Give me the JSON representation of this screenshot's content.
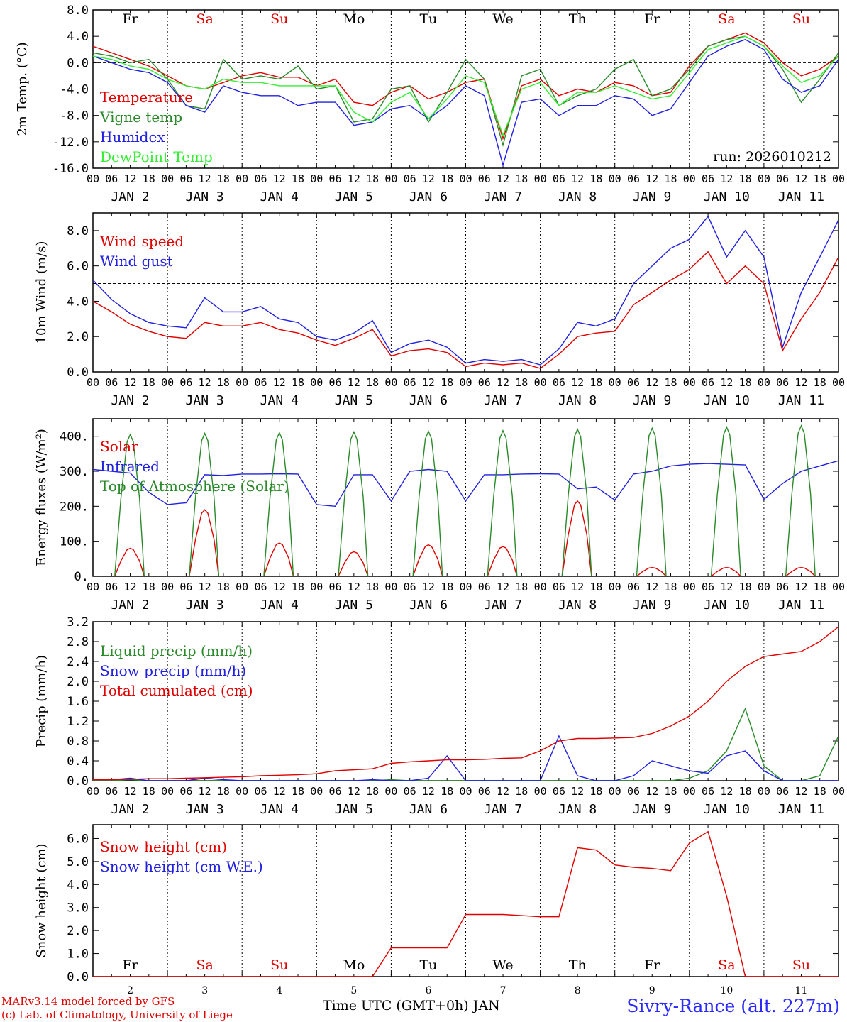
{
  "meter": {
    "days": [
      "JAN  2",
      "JAN  3",
      "JAN  4",
      "JAN  5",
      "JAN  6",
      "JAN  7",
      "JAN  8",
      "JAN  9",
      "JAN 10",
      "JAN 11"
    ],
    "hours": [
      "00",
      "06",
      "12",
      "18"
    ],
    "final_hour": "00",
    "weekdays": [
      {
        "label": "Fr",
        "color": "#000000"
      },
      {
        "label": "Sa",
        "color": "#e00000"
      },
      {
        "label": "Su",
        "color": "#e00000"
      },
      {
        "label": "Mo",
        "color": "#000000"
      },
      {
        "label": "Tu",
        "color": "#000000"
      },
      {
        "label": "We",
        "color": "#000000"
      },
      {
        "label": "Th",
        "color": "#000000"
      },
      {
        "label": "Fr",
        "color": "#000000"
      },
      {
        "label": "Sa",
        "color": "#e00000"
      },
      {
        "label": "Su",
        "color": "#e00000"
      }
    ],
    "bottom_day_numbers": [
      "2",
      "3",
      "4",
      "5",
      "6",
      "7",
      "8",
      "9",
      "10",
      "11"
    ]
  },
  "footer": {
    "model": "MARv3.14 model forced by GFS",
    "lab": "(c) Lab. of Climatology, University of Liege",
    "xlabel": "Time UTC (GMT+0h) JAN",
    "station": "Sivry-Rance (alt. 227m)"
  },
  "chart_data": [
    {
      "type": "line",
      "title": "",
      "ylabel": "2m Temp. (°C)",
      "ylim": [
        -16,
        8
      ],
      "yticks": [
        "8.0",
        "4.0",
        "0.0",
        "-4.0",
        "-8.0",
        "-12.0",
        "-16.0"
      ],
      "yref": 0,
      "annotation": "run: 2026010212",
      "x_hours": [
        0,
        6,
        12,
        18,
        24,
        30,
        36,
        42,
        48,
        54,
        60,
        66,
        72,
        78,
        84,
        90,
        96,
        102,
        108,
        114,
        120,
        126,
        132,
        138,
        144,
        150,
        156,
        162,
        168,
        174,
        180,
        186,
        192,
        198,
        204,
        210,
        216,
        222,
        228,
        234,
        240
      ],
      "series": [
        {
          "name": "Temperature",
          "color": "#e00000",
          "values": [
            2.5,
            1.5,
            0.5,
            -0.5,
            -2.0,
            -3.5,
            -4.0,
            -3.0,
            -2.0,
            -1.5,
            -2.2,
            -2.2,
            -3.5,
            -2.5,
            -6.0,
            -6.5,
            -4.5,
            -3.5,
            -5.5,
            -4.5,
            -3.0,
            -2.5,
            -11.5,
            -3.5,
            -2.5,
            -5.0,
            -4.0,
            -4.5,
            -3.0,
            -3.5,
            -5.0,
            -4.5,
            -0.5,
            2.5,
            3.5,
            4.5,
            3.0,
            0.0,
            -2.0,
            -1.0,
            1.0
          ]
        },
        {
          "name": "Vigne temp",
          "color": "#2a8a2a",
          "values": [
            1.5,
            1.0,
            0.0,
            0.5,
            -2.5,
            -6.5,
            -7.0,
            0.5,
            -2.5,
            -2.0,
            -2.5,
            -0.5,
            -4.0,
            -3.5,
            -9.0,
            -8.5,
            -4.0,
            -3.5,
            -9.0,
            -4.5,
            0.5,
            -2.5,
            -12.5,
            -2.0,
            -1.0,
            -6.5,
            -5.0,
            -4.0,
            -1.0,
            0.5,
            -5.0,
            -4.0,
            -1.0,
            2.5,
            3.5,
            4.0,
            2.5,
            -1.0,
            -6.0,
            -2.5,
            1.5
          ]
        },
        {
          "name": "Humidex",
          "color": "#2020e0",
          "values": [
            1.0,
            0.0,
            -1.0,
            -1.5,
            -3.0,
            -6.5,
            -7.5,
            -3.5,
            -4.5,
            -5.0,
            -5.0,
            -6.5,
            -6.0,
            -6.0,
            -9.5,
            -9.0,
            -7.0,
            -6.5,
            -8.5,
            -6.5,
            -3.5,
            -5.0,
            -15.5,
            -6.0,
            -5.5,
            -8.0,
            -6.5,
            -6.5,
            -5.0,
            -5.5,
            -8.0,
            -7.0,
            -3.0,
            1.0,
            2.5,
            3.5,
            2.0,
            -2.5,
            -4.5,
            -3.5,
            0.5
          ]
        },
        {
          "name": "DewPoint Temp",
          "color": "#33ee33",
          "values": [
            1.0,
            0.5,
            -0.5,
            -1.0,
            -2.5,
            -3.5,
            -4.0,
            -2.5,
            -3.0,
            -3.0,
            -3.5,
            -3.5,
            -3.5,
            -3.5,
            -7.5,
            -9.0,
            -6.0,
            -4.5,
            -8.5,
            -5.5,
            -2.0,
            -3.0,
            -11.0,
            -4.0,
            -3.0,
            -6.5,
            -4.5,
            -4.5,
            -3.5,
            -4.5,
            -5.5,
            -5.0,
            -1.5,
            2.0,
            3.0,
            4.0,
            2.5,
            -0.5,
            -3.0,
            -2.0,
            1.0
          ]
        }
      ]
    },
    {
      "type": "line",
      "ylabel": "10m Wind (m/s)",
      "ylim": [
        0,
        9
      ],
      "yticks": [
        "8.0",
        "6.0",
        "4.0",
        "2.0",
        "0.0"
      ],
      "yref": 5,
      "x_hours": [
        0,
        6,
        12,
        18,
        24,
        30,
        36,
        42,
        48,
        54,
        60,
        66,
        72,
        78,
        84,
        90,
        96,
        102,
        108,
        114,
        120,
        126,
        132,
        138,
        144,
        150,
        156,
        162,
        168,
        174,
        180,
        186,
        192,
        198,
        204,
        210,
        216,
        222,
        228,
        234,
        240
      ],
      "series": [
        {
          "name": "Wind speed",
          "color": "#e00000",
          "values": [
            4.0,
            3.4,
            2.7,
            2.3,
            2.0,
            1.9,
            2.8,
            2.6,
            2.6,
            2.8,
            2.4,
            2.2,
            1.8,
            1.5,
            1.9,
            2.4,
            0.9,
            1.2,
            1.3,
            1.1,
            0.3,
            0.5,
            0.4,
            0.5,
            0.2,
            1.0,
            2.0,
            2.2,
            2.3,
            3.8,
            4.5,
            5.2,
            5.8,
            6.8,
            5.0,
            6.0,
            5.0,
            1.2,
            3.0,
            4.5,
            6.5
          ]
        },
        {
          "name": "Wind gust",
          "color": "#2020e0",
          "values": [
            5.2,
            4.1,
            3.3,
            2.8,
            2.6,
            2.5,
            4.2,
            3.4,
            3.4,
            3.7,
            3.0,
            2.8,
            2.0,
            1.8,
            2.2,
            2.9,
            1.1,
            1.6,
            1.8,
            1.4,
            0.5,
            0.7,
            0.6,
            0.7,
            0.4,
            1.3,
            2.8,
            2.6,
            3.0,
            5.0,
            6.0,
            7.0,
            7.5,
            8.8,
            6.5,
            8.0,
            6.5,
            1.4,
            4.5,
            6.5,
            8.6
          ]
        }
      ]
    },
    {
      "type": "line",
      "ylabel": "Energy fluxes (W/m²)",
      "ylim": [
        0,
        450
      ],
      "yticks": [
        "400.",
        "300.",
        "200.",
        "100.",
        "0."
      ],
      "x_hours": [
        0,
        6,
        12,
        18,
        24,
        30,
        36,
        42,
        48,
        54,
        60,
        66,
        72,
        78,
        84,
        90,
        96,
        102,
        108,
        114,
        120,
        126,
        132,
        138,
        144,
        150,
        156,
        162,
        168,
        174,
        180,
        186,
        192,
        198,
        204,
        210,
        216,
        222,
        228,
        234,
        240
      ],
      "series": [
        {
          "name": "Solar",
          "color": "#e00000",
          "peaks": [
            80,
            190,
            95,
            70,
            90,
            85,
            215,
            25,
            25,
            25
          ]
        },
        {
          "name": "Infrared",
          "color": "#2020e0",
          "values": [
            305,
            300,
            295,
            240,
            205,
            210,
            290,
            288,
            292,
            292,
            293,
            292,
            205,
            200,
            290,
            290,
            215,
            300,
            305,
            300,
            215,
            290,
            290,
            292,
            293,
            292,
            250,
            255,
            218,
            292,
            300,
            315,
            320,
            322,
            320,
            318,
            220,
            265,
            300,
            315,
            330
          ]
        },
        {
          "name": "Top of Atmosphere (Solar)",
          "color": "#2a8a2a",
          "peaks": [
            405,
            408,
            410,
            412,
            414,
            416,
            420,
            423,
            426,
            430
          ]
        }
      ]
    },
    {
      "type": "line",
      "ylabel": "Precip (mm/h)",
      "ylim": [
        0,
        3.2
      ],
      "yticks": [
        "3.2",
        "2.8",
        "2.4",
        "2.0",
        "1.6",
        "1.2",
        "0.8",
        "0.4",
        "0.0"
      ],
      "x_hours": [
        0,
        6,
        12,
        18,
        24,
        30,
        36,
        42,
        48,
        54,
        60,
        66,
        72,
        78,
        84,
        90,
        96,
        102,
        108,
        114,
        120,
        126,
        132,
        138,
        144,
        150,
        156,
        162,
        168,
        174,
        180,
        186,
        192,
        198,
        204,
        210,
        216,
        222,
        228,
        234,
        240
      ],
      "series": [
        {
          "name": "Liquid precip (mm/h)",
          "color": "#2a8a2a",
          "values": [
            0,
            0,
            0.02,
            0,
            0,
            0,
            0,
            0,
            0,
            0,
            0,
            0,
            0,
            0,
            0,
            0,
            0.02,
            0,
            0,
            0,
            0,
            0,
            0,
            0,
            0,
            0,
            0,
            0,
            0,
            0,
            0,
            0,
            0.05,
            0.2,
            0.6,
            1.45,
            0.3,
            0,
            0,
            0.1,
            0.9
          ]
        },
        {
          "name": "Snow precip (mm/h)",
          "color": "#2020e0",
          "values": [
            0.02,
            0.02,
            0.05,
            0,
            0,
            0,
            0.05,
            0.02,
            0,
            0,
            0,
            0,
            0,
            0,
            0,
            0.02,
            0,
            0,
            0.05,
            0.5,
            0,
            0,
            0,
            0,
            0,
            0.9,
            0.1,
            0,
            0,
            0.1,
            0.4,
            0.3,
            0.2,
            0.15,
            0.5,
            0.6,
            0.2,
            0,
            0,
            0,
            0
          ]
        },
        {
          "name": "Total cumulated (cm)",
          "color": "#e00000",
          "values": [
            0.02,
            0.02,
            0.03,
            0.04,
            0.04,
            0.05,
            0.06,
            0.07,
            0.08,
            0.1,
            0.11,
            0.12,
            0.14,
            0.2,
            0.22,
            0.24,
            0.35,
            0.38,
            0.4,
            0.42,
            0.42,
            0.43,
            0.45,
            0.46,
            0.6,
            0.8,
            0.85,
            0.85,
            0.86,
            0.87,
            0.95,
            1.1,
            1.3,
            1.6,
            2.0,
            2.3,
            2.5,
            2.55,
            2.6,
            2.8,
            3.1
          ]
        }
      ]
    },
    {
      "type": "line",
      "ylabel": "Snow height (cm)",
      "ylim": [
        0,
        6.6
      ],
      "yticks": [
        "6.0",
        "5.0",
        "4.0",
        "3.0",
        "2.0",
        "1.0",
        "0.0"
      ],
      "x_hours": [
        0,
        6,
        12,
        18,
        24,
        30,
        36,
        42,
        48,
        54,
        60,
        66,
        72,
        78,
        84,
        90,
        96,
        102,
        108,
        114,
        120,
        126,
        132,
        138,
        144,
        150,
        156,
        162,
        168,
        174,
        180,
        186,
        192,
        198,
        204,
        210,
        216,
        222,
        228,
        234,
        240
      ],
      "series": [
        {
          "name": "Snow height (cm)",
          "color": "#e00000",
          "values": [
            0,
            0,
            0,
            0,
            0,
            0,
            0,
            0,
            0,
            0,
            0,
            0,
            0,
            0,
            0,
            0,
            1.25,
            1.25,
            1.25,
            1.25,
            2.7,
            2.7,
            2.7,
            2.65,
            2.6,
            2.6,
            5.6,
            5.5,
            4.85,
            4.75,
            4.7,
            4.6,
            5.8,
            6.3,
            3.5,
            0,
            0,
            0,
            0,
            0,
            0
          ]
        },
        {
          "name": "Snow height (cm W.E.)",
          "color": "#2020e0",
          "values": []
        }
      ]
    }
  ]
}
